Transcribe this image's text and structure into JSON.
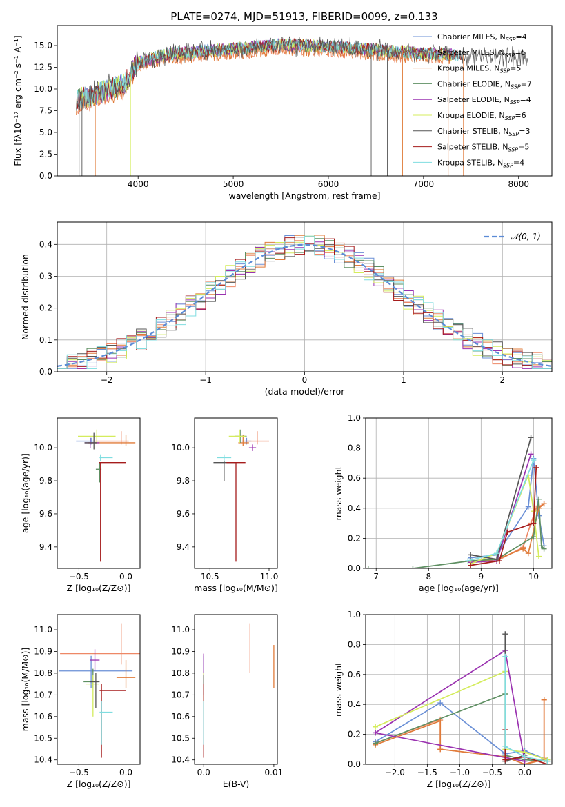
{
  "figure_title": "PLATE=0274, MJD=51913, FIBERID=0099, z=0.133",
  "models": [
    {
      "label": "Chabrier MILES, N",
      "sub": "SSP",
      "n": "=4",
      "color": "#6a8fd6"
    },
    {
      "label": "Salpeter MILES, N",
      "sub": "SSP",
      "n": "=5",
      "color": "#ee8866"
    },
    {
      "label": "Kroupa MILES, N",
      "sub": "SSP",
      "n": "=5",
      "color": "#e07b39"
    },
    {
      "label": "Chabrier ELODIE, N",
      "sub": "SSP",
      "n": "=7",
      "color": "#5e8f62"
    },
    {
      "label": "Salpeter ELODIE, N",
      "sub": "SSP",
      "n": "=4",
      "color": "#9a32b0"
    },
    {
      "label": "Kroupa ELODIE, N",
      "sub": "SSP",
      "n": "=6",
      "color": "#d4ec5c"
    },
    {
      "label": "Chabrier STELIB, N",
      "sub": "SSP",
      "n": "=3",
      "color": "#555555"
    },
    {
      "label": "Salpeter STELIB, N",
      "sub": "SSP",
      "n": "=5",
      "color": "#a51c1c"
    },
    {
      "label": "Kroupa STELIB, N",
      "sub": "SSP",
      "n": "=4",
      "color": "#7fdde0"
    }
  ],
  "chart_data": [
    {
      "id": "spectrum",
      "type": "line",
      "xlabel": "wavelength [Angstrom, rest frame]",
      "ylabel": "Flux [fλ10⁻¹⁷ erg cm⁻² s⁻¹ A⁻¹]",
      "xlim": [
        3150,
        8350
      ],
      "ylim": [
        0,
        17.3
      ],
      "xticks": [
        4000,
        5000,
        6000,
        7000,
        8000
      ],
      "yticks": [
        0.0,
        2.5,
        5.0,
        7.5,
        10.0,
        12.5,
        15.0
      ],
      "continuum": [
        [
          3350,
          8.8
        ],
        [
          3500,
          9.2
        ],
        [
          3700,
          10.0
        ],
        [
          3850,
          10.5
        ],
        [
          4000,
          13.0
        ],
        [
          4300,
          14.0
        ],
        [
          4600,
          14.3
        ],
        [
          5000,
          14.6
        ],
        [
          5500,
          15.1
        ],
        [
          6000,
          14.9
        ],
        [
          6500,
          14.5
        ],
        [
          7000,
          14.1
        ],
        [
          7500,
          13.9
        ],
        [
          8000,
          13.6
        ],
        [
          8100,
          13.5
        ]
      ],
      "spikes": [
        3380,
        3410,
        3550,
        3920,
        6450,
        6620,
        6780,
        7260,
        7420
      ],
      "legend_position": "upper right"
    },
    {
      "id": "residuals",
      "type": "step",
      "xlabel": "(data-model)/error",
      "ylabel": "Normed distribution",
      "xlim": [
        -2.5,
        2.5
      ],
      "ylim": [
        0,
        0.47
      ],
      "xticks": [
        -2,
        -1,
        0,
        1,
        2
      ],
      "yticks": [
        0.0,
        0.1,
        0.2,
        0.3,
        0.4
      ],
      "reference_label": "𝒩(0, 1)",
      "reference_color": "#5b8bd6",
      "grid": true,
      "legend_position": "upper right"
    },
    {
      "id": "age_vs_Z",
      "type": "errorbar",
      "xlabel": "Z [log₁₀(Z/Z⊙)]",
      "ylabel": "age  [log₁₀(age/yr)]",
      "xlim": [
        -0.73,
        0.15
      ],
      "ylim": [
        9.27,
        10.18
      ],
      "xticks": [
        -0.5,
        0.0
      ],
      "yticks": [
        9.4,
        9.6,
        9.8,
        10.0
      ],
      "points": [
        {
          "x": -0.37,
          "y": 10.04,
          "xerr": [
            0.16,
            0.03
          ],
          "yerr": [
            0.02,
            0.02
          ]
        },
        {
          "x": -0.05,
          "y": 10.04,
          "xerr": [
            0.28,
            0.08
          ],
          "yerr": [
            0.02,
            0.06
          ]
        },
        {
          "x": 0.0,
          "y": 10.03,
          "xerr": [
            0.4,
            0.1
          ],
          "yerr": [
            0.02,
            0.05
          ]
        },
        {
          "x": -0.28,
          "y": 9.87,
          "xerr": [
            0.04,
            0.02
          ],
          "yerr": [
            0.08,
            0.04
          ]
        },
        {
          "x": -0.38,
          "y": 10.03,
          "xerr": [
            0.06,
            0.1
          ],
          "yerr": [
            0.03,
            0.03
          ]
        },
        {
          "x": -0.31,
          "y": 10.07,
          "xerr": [
            0.2,
            0.2
          ],
          "yerr": [
            0.04,
            0.04
          ]
        },
        {
          "x": -0.34,
          "y": 10.03,
          "xerr": [
            0.1,
            0.03
          ],
          "yerr": [
            0.04,
            0.06
          ]
        },
        {
          "x": -0.27,
          "y": 9.91,
          "xerr": [
            0.02,
            0.27
          ],
          "yerr": [
            0.6,
            0.0
          ]
        },
        {
          "x": -0.27,
          "y": 9.94,
          "xerr": [
            0.01,
            0.13
          ],
          "yerr": [
            0.02,
            0.02
          ]
        }
      ]
    },
    {
      "id": "age_vs_mass",
      "type": "errorbar",
      "xlabel": "mass [log₁₀(M/M⊙)]",
      "ylabel": "",
      "xlim": [
        10.37,
        11.07
      ],
      "ylim": [
        9.27,
        10.18
      ],
      "xticks": [
        10.5,
        11.0
      ],
      "yticks": [
        9.4,
        9.6,
        9.8,
        10.0
      ],
      "points": [
        {
          "x": 10.81,
          "y": 10.04,
          "xerr": [
            0.04,
            0.04
          ],
          "yerr": [
            0.02,
            0.02
          ]
        },
        {
          "x": 10.9,
          "y": 10.04,
          "xerr": [
            0.1,
            0.1
          ],
          "yerr": [
            0.02,
            0.06
          ]
        },
        {
          "x": 10.78,
          "y": 10.03,
          "xerr": [
            0.04,
            0.05
          ],
          "yerr": [
            0.02,
            0.05
          ]
        },
        {
          "x": 10.76,
          "y": 10.07,
          "xerr": [
            0.05,
            0.05
          ],
          "yerr": [
            0.04,
            0.04
          ]
        },
        {
          "x": 10.86,
          "y": 10.0,
          "xerr": [
            0.03,
            0.03
          ],
          "yerr": [
            0.02,
            0.02
          ]
        },
        {
          "x": 10.75,
          "y": 10.07,
          "xerr": [
            0.09,
            0.05
          ],
          "yerr": [
            0.04,
            0.04
          ]
        },
        {
          "x": 10.62,
          "y": 9.91,
          "xerr": [
            0.09,
            0.09
          ],
          "yerr": [
            0.11,
            0.03
          ]
        },
        {
          "x": 10.72,
          "y": 9.91,
          "xerr": [
            0.08,
            0.08
          ],
          "yerr": [
            0.6,
            0.0
          ]
        },
        {
          "x": 10.62,
          "y": 9.94,
          "xerr": [
            0.06,
            0.06
          ],
          "yerr": [
            0.02,
            0.02
          ]
        }
      ]
    },
    {
      "id": "weight_vs_age",
      "type": "line",
      "xlabel": "age  [log₁₀(age/yr)]",
      "ylabel": "mass weight",
      "xlim": [
        6.8,
        10.35
      ],
      "ylim": [
        0,
        1.0
      ],
      "xticks": [
        7,
        8,
        9,
        10
      ],
      "yticks": [
        0.0,
        0.2,
        0.4,
        0.6,
        0.8,
        1.0
      ],
      "grid": true,
      "series": [
        {
          "x": [
            8.8,
            9.3,
            9.9,
            10.0,
            10.1,
            10.2
          ],
          "y": [
            0.07,
            0.09,
            0.41,
            0.73,
            0.35,
            0.15
          ]
        },
        {
          "x": [
            8.8,
            9.3,
            9.8,
            9.95,
            10.05,
            10.2
          ],
          "y": [
            0.04,
            0.05,
            0.14,
            0.3,
            0.4,
            0.43
          ]
        },
        {
          "x": [
            8.8,
            9.3,
            9.8,
            9.9,
            10.1,
            10.2
          ],
          "y": [
            0.04,
            0.06,
            0.13,
            0.1,
            0.4,
            0.43
          ]
        },
        {
          "x": [
            6.85,
            7.7,
            8.8,
            9.3,
            10.0,
            10.1,
            10.15,
            10.2
          ],
          "y": [
            0.0,
            0.0,
            0.05,
            0.06,
            0.21,
            0.46,
            0.15,
            0.13
          ]
        },
        {
          "x": [
            8.8,
            9.3,
            9.95
          ],
          "y": [
            0.04,
            0.05,
            0.76
          ]
        },
        {
          "x": [
            8.8,
            9.3,
            9.9,
            10.0,
            10.1
          ],
          "y": [
            0.03,
            0.1,
            0.62,
            0.38,
            0.08
          ]
        },
        {
          "x": [
            8.8,
            9.3,
            9.95
          ],
          "y": [
            0.09,
            0.06,
            0.87
          ]
        },
        {
          "x": [
            8.8,
            9.35,
            9.5,
            10.0,
            10.05
          ],
          "y": [
            0.02,
            0.05,
            0.24,
            0.3,
            0.67
          ]
        },
        {
          "x": [
            8.75,
            9.3,
            10.0
          ],
          "y": [
            0.05,
            0.1,
            0.72
          ]
        }
      ]
    },
    {
      "id": "mass_vs_Z",
      "type": "errorbar",
      "xlabel": "Z [log₁₀(Z/Z⊙)]",
      "ylabel": "mass [log₁₀(M/M⊙)]",
      "xlim": [
        -0.73,
        0.15
      ],
      "ylim": [
        10.38,
        11.07
      ],
      "xticks": [
        -0.5,
        0.0
      ],
      "yticks": [
        10.4,
        10.5,
        10.6,
        10.7,
        10.8,
        10.9,
        11.0
      ],
      "points": [
        {
          "x": -0.37,
          "y": 10.81,
          "xerr": [
            0.34,
            0.44
          ],
          "yerr": [
            0.08,
            0.07
          ]
        },
        {
          "x": -0.05,
          "y": 10.89,
          "xerr": [
            0.65,
            0.2
          ],
          "yerr": [
            0.05,
            0.14
          ]
        },
        {
          "x": 0.0,
          "y": 10.78,
          "xerr": [
            0.1,
            0.1
          ],
          "yerr": [
            0.05,
            0.08
          ]
        },
        {
          "x": -0.35,
          "y": 10.76,
          "xerr": [
            0.1,
            0.05
          ],
          "yerr": [
            0.03,
            0.06
          ]
        },
        {
          "x": -0.33,
          "y": 10.86,
          "xerr": [
            0.05,
            0.05
          ],
          "yerr": [
            0.05,
            0.05
          ]
        },
        {
          "x": -0.35,
          "y": 10.75,
          "xerr": [
            0.08,
            0.06
          ],
          "yerr": [
            0.15,
            0.04
          ]
        },
        {
          "x": -0.32,
          "y": 10.76,
          "xerr": [
            0.06,
            0.04
          ],
          "yerr": [
            0.12,
            0.04
          ]
        },
        {
          "x": -0.26,
          "y": 10.72,
          "xerr": [
            0.02,
            0.26
          ],
          "yerr": [
            0.31,
            0.03
          ]
        },
        {
          "x": -0.26,
          "y": 10.62,
          "xerr": [
            0.02,
            0.12
          ],
          "yerr": [
            0.15,
            0.05
          ]
        }
      ]
    },
    {
      "id": "mass_vs_ebv",
      "type": "errorbar",
      "xlabel": "E(B-V)",
      "ylabel": "",
      "xlim": [
        -0.0013,
        0.0105
      ],
      "ylim": [
        10.38,
        11.07
      ],
      "xticks": [
        0.0,
        0.01
      ],
      "yticks": [
        10.4,
        10.5,
        10.6,
        10.7,
        10.8,
        10.9,
        11.0
      ],
      "points": [
        {
          "x": 0.0,
          "y": 10.81,
          "xerr": [
            0,
            0
          ],
          "yerr": [
            0.08,
            0.07
          ]
        },
        {
          "x": 0.0066,
          "y": 10.89,
          "xerr": [
            0,
            0
          ],
          "yerr": [
            0.09,
            0.14
          ]
        },
        {
          "x": 0.01,
          "y": 10.8,
          "xerr": [
            0,
            0
          ],
          "yerr": [
            0.07,
            0.13
          ]
        },
        {
          "x": 0.0,
          "y": 10.75,
          "xerr": [
            0,
            0
          ],
          "yerr": [
            0.03,
            0.06
          ]
        },
        {
          "x": 0.0,
          "y": 10.8,
          "xerr": [
            0,
            0
          ],
          "yerr": [
            0.05,
            0.09
          ]
        },
        {
          "x": 0.0,
          "y": 10.75,
          "xerr": [
            0,
            0
          ],
          "yerr": [
            0.15,
            0.05
          ]
        },
        {
          "x": 0.0,
          "y": 10.75,
          "xerr": [
            0,
            0
          ],
          "yerr": [
            0.05,
            0.04
          ]
        },
        {
          "x": 0.0,
          "y": 10.72,
          "xerr": [
            0,
            0
          ],
          "yerr": [
            0.31,
            0.03
          ]
        },
        {
          "x": 0.0,
          "y": 10.62,
          "xerr": [
            0,
            0
          ],
          "yerr": [
            0.15,
            0.05
          ]
        }
      ]
    },
    {
      "id": "weight_vs_Z",
      "type": "line",
      "xlabel": "Z [log₁₀(Z/Z⊙)]",
      "ylabel": "mass weight",
      "xlim": [
        -2.45,
        0.42
      ],
      "ylim": [
        0,
        1.0
      ],
      "xticks": [
        -2.0,
        -1.5,
        -1.0,
        -0.5,
        0.0
      ],
      "yticks": [
        0.0,
        0.2,
        0.4,
        0.6,
        0.8,
        1.0
      ],
      "grid": true,
      "series": [
        {
          "x": [
            -2.3,
            -1.3,
            -0.3,
            0.0,
            0.35
          ],
          "y": [
            0.15,
            0.41,
            0.07,
            0.09,
            0.03
          ]
        },
        {
          "x": [
            -2.3,
            -1.3,
            -1.3,
            -0.3,
            0.0,
            0.3,
            0.3
          ],
          "y": [
            0.14,
            0.3,
            0.1,
            0.05,
            0.0,
            0.04,
            0.43
          ]
        },
        {
          "x": [
            -2.3,
            -1.3,
            -1.3,
            -0.3,
            0.0,
            0.3,
            0.3
          ],
          "y": [
            0.13,
            0.29,
            0.1,
            0.05,
            0.0,
            0.03,
            0.43
          ]
        },
        {
          "x": [
            -2.3,
            -0.3,
            -0.3,
            0.0,
            0.35
          ],
          "y": [
            0.14,
            0.47,
            0.06,
            0.03,
            0.02
          ]
        },
        {
          "x": [
            -2.3,
            -0.3,
            0.0,
            -2.3
          ],
          "y": [
            0.21,
            0.76,
            0.02,
            0.21
          ]
        },
        {
          "x": [
            -2.3,
            -0.3,
            -0.3,
            0.0,
            0.35
          ],
          "y": [
            0.25,
            0.62,
            0.1,
            0.08,
            0.03
          ]
        },
        {
          "x": [
            -0.3,
            -0.3,
            0.0
          ],
          "y": [
            0.87,
            0.02,
            0.06
          ]
        },
        {
          "x": [
            -0.3,
            -0.3,
            0.0,
            0.35
          ],
          "y": [
            0.23,
            0.03,
            0.05,
            0.0
          ]
        },
        {
          "x": [
            -0.3,
            -0.3,
            0.0,
            0.35
          ],
          "y": [
            0.72,
            0.12,
            0.05,
            0.02
          ]
        }
      ]
    }
  ]
}
